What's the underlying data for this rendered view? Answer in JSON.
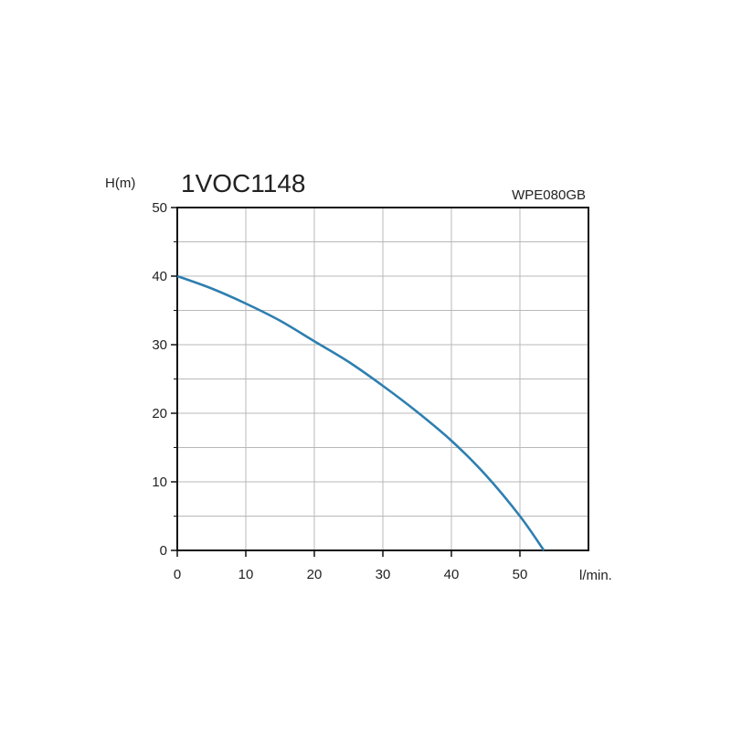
{
  "chart_data": {
    "type": "line",
    "title": "1VOC1148",
    "subtitle": "WPE080GB",
    "ylabel": "H(m)",
    "xlabel": "l/min.",
    "xlim": [
      0,
      60
    ],
    "ylim": [
      0,
      50
    ],
    "x_ticks": [
      0,
      10,
      20,
      30,
      40,
      50
    ],
    "y_ticks": [
      0,
      10,
      20,
      30,
      40,
      50
    ],
    "x_minor_step": 5,
    "y_minor_step": 5,
    "grid": true,
    "colors": {
      "curve": "#2e7fb0",
      "grid": "#b8b8b8",
      "frame": "#111111",
      "text": "#222222"
    },
    "series": [
      {
        "x": [
          0,
          5,
          10,
          15,
          20,
          25,
          30,
          35,
          40,
          45,
          50,
          53.5
        ],
        "y": [
          40,
          38.2,
          36,
          33.5,
          30.5,
          27.5,
          24,
          20.2,
          16,
          11,
          5,
          0
        ]
      }
    ]
  }
}
